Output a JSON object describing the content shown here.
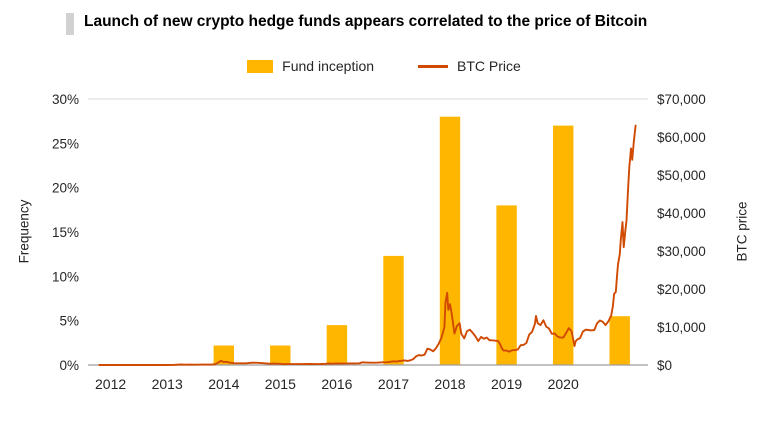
{
  "title": "Launch of new crypto hedge funds appears correlated to the price of Bitcoin",
  "legend": {
    "items": [
      {
        "label": "Fund inception",
        "type": "bar",
        "color": "#FFB600"
      },
      {
        "label": "BTC Price",
        "type": "line",
        "color": "#D04A02"
      }
    ]
  },
  "axes": {
    "left_title": "Frequency",
    "right_title": "BTC price"
  },
  "chart_data": {
    "type": "bar+line",
    "title": "Launch of new crypto hedge funds appears correlated to the price of Bitcoin",
    "x_range": [
      2011.6,
      2021.5
    ],
    "x_ticks": [
      {
        "value": 2012,
        "label": "2012"
      },
      {
        "value": 2013,
        "label": "2013"
      },
      {
        "value": 2014,
        "label": "2014"
      },
      {
        "value": 2015,
        "label": "2015"
      },
      {
        "value": 2016,
        "label": "2016"
      },
      {
        "value": 2017,
        "label": "2017"
      },
      {
        "value": 2018,
        "label": "2018"
      },
      {
        "value": 2019,
        "label": "2019"
      },
      {
        "value": 2020,
        "label": "2020"
      }
    ],
    "left_axis": {
      "title": "Frequency",
      "min": 0,
      "max": 30,
      "ticks": [
        {
          "value": 0,
          "label": "0%"
        },
        {
          "value": 5,
          "label": "5%"
        },
        {
          "value": 10,
          "label": "10%"
        },
        {
          "value": 15,
          "label": "15%"
        },
        {
          "value": 20,
          "label": "20%"
        },
        {
          "value": 25,
          "label": "25%"
        },
        {
          "value": 30,
          "label": "30%"
        }
      ]
    },
    "right_axis": {
      "title": "BTC price",
      "min": 0,
      "max": 70000,
      "ticks": [
        {
          "value": 0,
          "label": "$0"
        },
        {
          "value": 10000,
          "label": "$10,000"
        },
        {
          "value": 20000,
          "label": "$20,000"
        },
        {
          "value": 30000,
          "label": "$30,000"
        },
        {
          "value": 40000,
          "label": "$40,000"
        },
        {
          "value": 50000,
          "label": "$50,000"
        },
        {
          "value": 60000,
          "label": "$60,000"
        },
        {
          "value": 70000,
          "label": "$70,000"
        }
      ]
    },
    "bars": {
      "name": "Fund inception",
      "axis": "left",
      "unit": "%",
      "color": "#FFB600",
      "width_years": 0.36,
      "x": [
        2014,
        2015,
        2016,
        2017,
        2018,
        2019,
        2020,
        2021
      ],
      "values": [
        2.2,
        2.2,
        4.5,
        12.3,
        28,
        18,
        27,
        5.5
      ]
    },
    "line": {
      "name": "BTC Price",
      "axis": "right",
      "unit": "USD",
      "color": "#D04A02",
      "points": [
        [
          2011.8,
          3
        ],
        [
          2012.0,
          5
        ],
        [
          2012.25,
          5
        ],
        [
          2012.5,
          6
        ],
        [
          2012.75,
          10
        ],
        [
          2013.0,
          13
        ],
        [
          2013.1,
          25
        ],
        [
          2013.25,
          140
        ],
        [
          2013.3,
          80
        ],
        [
          2013.4,
          100
        ],
        [
          2013.5,
          90
        ],
        [
          2013.6,
          100
        ],
        [
          2013.7,
          110
        ],
        [
          2013.8,
          130
        ],
        [
          2013.85,
          200
        ],
        [
          2013.9,
          600
        ],
        [
          2013.95,
          1100
        ],
        [
          2014.0,
          750
        ],
        [
          2014.05,
          850
        ],
        [
          2014.1,
          620
        ],
        [
          2014.2,
          450
        ],
        [
          2014.3,
          450
        ],
        [
          2014.4,
          440
        ],
        [
          2014.5,
          600
        ],
        [
          2014.6,
          580
        ],
        [
          2014.7,
          480
        ],
        [
          2014.8,
          350
        ],
        [
          2014.9,
          370
        ],
        [
          2015.0,
          315
        ],
        [
          2015.05,
          220
        ],
        [
          2015.1,
          240
        ],
        [
          2015.2,
          245
        ],
        [
          2015.3,
          235
        ],
        [
          2015.4,
          240
        ],
        [
          2015.5,
          260
        ],
        [
          2015.55,
          280
        ],
        [
          2015.6,
          230
        ],
        [
          2015.7,
          235
        ],
        [
          2015.8,
          310
        ],
        [
          2015.85,
          400
        ],
        [
          2015.9,
          350
        ],
        [
          2016.0,
          430
        ],
        [
          2016.1,
          375
        ],
        [
          2016.2,
          415
        ],
        [
          2016.3,
          420
        ],
        [
          2016.4,
          450
        ],
        [
          2016.45,
          700
        ],
        [
          2016.5,
          670
        ],
        [
          2016.6,
          600
        ],
        [
          2016.7,
          610
        ],
        [
          2016.8,
          700
        ],
        [
          2016.9,
          730
        ],
        [
          2017.0,
          970
        ],
        [
          2017.05,
          890
        ],
        [
          2017.1,
          1050
        ],
        [
          2017.2,
          1200
        ],
        [
          2017.25,
          1080
        ],
        [
          2017.3,
          1250
        ],
        [
          2017.35,
          1550
        ],
        [
          2017.4,
          2300
        ],
        [
          2017.45,
          2600
        ],
        [
          2017.5,
          2500
        ],
        [
          2017.55,
          2700
        ],
        [
          2017.6,
          4300
        ],
        [
          2017.65,
          4100
        ],
        [
          2017.7,
          3600
        ],
        [
          2017.75,
          4400
        ],
        [
          2017.8,
          5600
        ],
        [
          2017.85,
          7200
        ],
        [
          2017.9,
          9900
        ],
        [
          2017.92,
          16500
        ],
        [
          2017.95,
          19000
        ],
        [
          2017.97,
          14500
        ],
        [
          2018.0,
          16000
        ],
        [
          2018.03,
          13500
        ],
        [
          2018.08,
          8300
        ],
        [
          2018.12,
          10200
        ],
        [
          2018.17,
          11000
        ],
        [
          2018.2,
          8200
        ],
        [
          2018.25,
          7000
        ],
        [
          2018.3,
          8900
        ],
        [
          2018.35,
          9300
        ],
        [
          2018.4,
          8500
        ],
        [
          2018.45,
          7500
        ],
        [
          2018.5,
          6300
        ],
        [
          2018.55,
          7400
        ],
        [
          2018.6,
          6900
        ],
        [
          2018.65,
          7200
        ],
        [
          2018.7,
          6500
        ],
        [
          2018.75,
          6500
        ],
        [
          2018.8,
          6400
        ],
        [
          2018.85,
          6300
        ],
        [
          2018.88,
          5600
        ],
        [
          2018.92,
          4300
        ],
        [
          2018.95,
          3800
        ],
        [
          2019.0,
          3800
        ],
        [
          2019.05,
          3500
        ],
        [
          2019.1,
          3900
        ],
        [
          2019.15,
          3900
        ],
        [
          2019.2,
          4100
        ],
        [
          2019.25,
          5200
        ],
        [
          2019.3,
          5300
        ],
        [
          2019.35,
          5800
        ],
        [
          2019.4,
          8000
        ],
        [
          2019.45,
          8700
        ],
        [
          2019.5,
          10800
        ],
        [
          2019.52,
          12900
        ],
        [
          2019.55,
          11000
        ],
        [
          2019.6,
          10500
        ],
        [
          2019.65,
          11800
        ],
        [
          2019.7,
          10100
        ],
        [
          2019.75,
          9600
        ],
        [
          2019.8,
          8200
        ],
        [
          2019.85,
          8300
        ],
        [
          2019.9,
          7500
        ],
        [
          2019.95,
          7200
        ],
        [
          2020.0,
          7200
        ],
        [
          2020.05,
          8400
        ],
        [
          2020.1,
          9700
        ],
        [
          2020.15,
          8900
        ],
        [
          2020.2,
          5000
        ],
        [
          2020.22,
          6200
        ],
        [
          2020.25,
          6700
        ],
        [
          2020.3,
          7100
        ],
        [
          2020.35,
          8800
        ],
        [
          2020.4,
          9300
        ],
        [
          2020.45,
          9200
        ],
        [
          2020.5,
          9100
        ],
        [
          2020.55,
          9200
        ],
        [
          2020.6,
          11000
        ],
        [
          2020.65,
          11700
        ],
        [
          2020.7,
          11400
        ],
        [
          2020.75,
          10500
        ],
        [
          2020.8,
          11500
        ],
        [
          2020.85,
          13000
        ],
        [
          2020.88,
          15500
        ],
        [
          2020.9,
          18700
        ],
        [
          2020.93,
          19200
        ],
        [
          2020.95,
          23000
        ],
        [
          2020.97,
          26500
        ],
        [
          2021.0,
          29000
        ],
        [
          2021.02,
          33000
        ],
        [
          2021.05,
          37600
        ],
        [
          2021.07,
          31000
        ],
        [
          2021.1,
          35500
        ],
        [
          2021.12,
          38000
        ],
        [
          2021.15,
          47000
        ],
        [
          2021.17,
          52000
        ],
        [
          2021.2,
          57000
        ],
        [
          2021.22,
          54000
        ],
        [
          2021.25,
          59000
        ],
        [
          2021.28,
          63000
        ]
      ]
    },
    "grid": {
      "top_line": true,
      "bottom_axis": true,
      "other_gridlines": false
    },
    "legend_position": "top-center"
  }
}
